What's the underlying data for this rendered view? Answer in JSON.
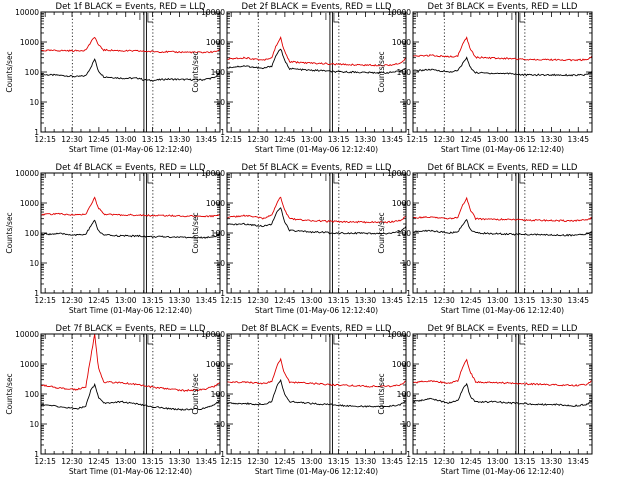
{
  "figure": {
    "xlabel": "Start Time (01-May-06 12:12:40)",
    "ylabel": "Counts/sec",
    "x_tick_labels": [
      "12:15",
      "12:30",
      "12:45",
      "13:00",
      "13:15",
      "13:30",
      "13:45"
    ],
    "y_tick_labels": [
      "1",
      "10",
      "100",
      "1000",
      "10000"
    ]
  },
  "colors": {
    "events": "#000000",
    "lld": "#e00000"
  },
  "chart_data": [
    {
      "type": "line",
      "title": "Det 1f BLACK = Events, RED = LLD",
      "x_unit": "minutes after 12:12:40",
      "xlim": [
        0,
        100
      ],
      "ylim": [
        1,
        10000
      ],
      "yscale": "log",
      "events_markers_min": [
        17.5,
        57.5,
        62.5
      ],
      "series": [
        {
          "name": "Events",
          "color": "#000000",
          "x": [
            0,
            10,
            20,
            25,
            28,
            30,
            32,
            35,
            45,
            55,
            57,
            62,
            70,
            80,
            90,
            97,
            100
          ],
          "values": [
            82,
            78,
            70,
            75,
            150,
            270,
            110,
            70,
            62,
            62,
            55,
            52,
            58,
            56,
            55,
            65,
            95
          ]
        },
        {
          "name": "LLD",
          "color": "#e00000",
          "x": [
            0,
            10,
            20,
            25,
            28,
            30,
            32,
            35,
            45,
            55,
            57,
            62,
            70,
            80,
            90,
            97,
            100
          ],
          "values": [
            520,
            520,
            510,
            540,
            1000,
            1500,
            800,
            540,
            510,
            500,
            490,
            480,
            470,
            460,
            450,
            470,
            560
          ]
        }
      ]
    },
    {
      "type": "line",
      "title": "Det 2f BLACK = Events, RED = LLD",
      "x_unit": "minutes after 12:12:40",
      "xlim": [
        0,
        100
      ],
      "ylim": [
        1,
        10000
      ],
      "yscale": "log",
      "events_markers_min": [
        17.5,
        57.5,
        62.5
      ],
      "series": [
        {
          "name": "Events",
          "color": "#000000",
          "x": [
            0,
            10,
            20,
            25,
            28,
            30,
            32,
            35,
            45,
            55,
            57,
            62,
            70,
            80,
            90,
            97,
            100
          ],
          "values": [
            140,
            160,
            130,
            160,
            420,
            600,
            250,
            130,
            115,
            110,
            105,
            100,
            100,
            95,
            95,
            105,
            140
          ]
        },
        {
          "name": "LLD",
          "color": "#e00000",
          "x": [
            0,
            10,
            20,
            25,
            28,
            30,
            32,
            35,
            45,
            55,
            57,
            62,
            70,
            80,
            90,
            97,
            100
          ],
          "values": [
            270,
            300,
            250,
            300,
            900,
            1350,
            500,
            220,
            200,
            190,
            185,
            180,
            175,
            170,
            170,
            190,
            290
          ]
        }
      ]
    },
    {
      "type": "line",
      "title": "Det 3f BLACK = Events, RED = LLD",
      "x_unit": "minutes after 12:12:40",
      "xlim": [
        0,
        100
      ],
      "ylim": [
        1,
        10000
      ],
      "yscale": "log",
      "events_markers_min": [
        17.5,
        57.5,
        62.5
      ],
      "series": [
        {
          "name": "Events",
          "color": "#000000",
          "x": [
            0,
            10,
            20,
            25,
            28,
            30,
            32,
            35,
            45,
            55,
            57,
            62,
            70,
            80,
            90,
            97,
            100
          ],
          "values": [
            110,
            120,
            100,
            110,
            200,
            300,
            140,
            95,
            90,
            90,
            85,
            80,
            80,
            80,
            78,
            80,
            105
          ]
        },
        {
          "name": "LLD",
          "color": "#e00000",
          "x": [
            0,
            10,
            20,
            25,
            28,
            30,
            32,
            35,
            45,
            55,
            57,
            62,
            70,
            80,
            90,
            97,
            100
          ],
          "values": [
            330,
            360,
            320,
            340,
            900,
            1400,
            600,
            310,
            290,
            280,
            275,
            265,
            260,
            255,
            250,
            260,
            330
          ]
        }
      ]
    },
    {
      "type": "line",
      "title": "Det 4f BLACK = Events, RED = LLD",
      "x_unit": "minutes after 12:12:40",
      "xlim": [
        0,
        100
      ],
      "ylim": [
        1,
        10000
      ],
      "yscale": "log",
      "events_markers_min": [
        17.5,
        57.5,
        62.5
      ],
      "series": [
        {
          "name": "Events",
          "color": "#000000",
          "x": [
            0,
            10,
            20,
            25,
            28,
            30,
            32,
            35,
            45,
            55,
            57,
            62,
            70,
            80,
            90,
            97,
            100
          ],
          "values": [
            90,
            95,
            85,
            90,
            180,
            260,
            120,
            85,
            80,
            80,
            78,
            75,
            75,
            72,
            70,
            75,
            95
          ]
        },
        {
          "name": "LLD",
          "color": "#e00000",
          "x": [
            0,
            10,
            20,
            25,
            28,
            30,
            32,
            35,
            45,
            55,
            57,
            62,
            70,
            80,
            90,
            97,
            100
          ],
          "values": [
            420,
            430,
            400,
            430,
            900,
            1500,
            700,
            420,
            400,
            400,
            390,
            380,
            380,
            370,
            360,
            370,
            430
          ]
        }
      ]
    },
    {
      "type": "line",
      "title": "Det 5f BLACK = Events, RED = LLD",
      "x_unit": "minutes after 12:12:40",
      "xlim": [
        0,
        100
      ],
      "ylim": [
        1,
        10000
      ],
      "yscale": "log",
      "events_markers_min": [
        17.5,
        57.5,
        62.5
      ],
      "series": [
        {
          "name": "Events",
          "color": "#000000",
          "x": [
            0,
            10,
            20,
            25,
            28,
            30,
            32,
            35,
            45,
            55,
            57,
            62,
            70,
            80,
            90,
            97,
            100
          ],
          "values": [
            190,
            200,
            170,
            200,
            500,
            700,
            250,
            120,
            110,
            105,
            100,
            100,
            100,
            95,
            95,
            110,
            160
          ]
        },
        {
          "name": "LLD",
          "color": "#e00000",
          "x": [
            0,
            10,
            20,
            25,
            28,
            30,
            32,
            35,
            45,
            55,
            57,
            62,
            70,
            80,
            90,
            97,
            100
          ],
          "values": [
            330,
            380,
            310,
            380,
            1000,
            1600,
            600,
            300,
            260,
            250,
            245,
            240,
            235,
            230,
            230,
            260,
            370
          ]
        }
      ]
    },
    {
      "type": "line",
      "title": "Det 6f BLACK = Events, RED = LLD",
      "x_unit": "minutes after 12:12:40",
      "xlim": [
        0,
        100
      ],
      "ylim": [
        1,
        10000
      ],
      "yscale": "log",
      "events_markers_min": [
        17.5,
        57.5,
        62.5
      ],
      "series": [
        {
          "name": "Events",
          "color": "#000000",
          "x": [
            0,
            10,
            20,
            25,
            28,
            30,
            32,
            35,
            45,
            55,
            57,
            62,
            70,
            80,
            90,
            97,
            100
          ],
          "values": [
            110,
            120,
            100,
            110,
            200,
            270,
            130,
            100,
            95,
            92,
            90,
            90,
            88,
            85,
            85,
            90,
            115
          ]
        },
        {
          "name": "LLD",
          "color": "#e00000",
          "x": [
            0,
            10,
            20,
            25,
            28,
            30,
            32,
            35,
            45,
            55,
            57,
            62,
            70,
            80,
            90,
            97,
            100
          ],
          "values": [
            320,
            340,
            300,
            330,
            900,
            1400,
            600,
            300,
            285,
            280,
            275,
            270,
            265,
            260,
            255,
            270,
            320
          ]
        }
      ]
    },
    {
      "type": "line",
      "title": "Det 7f BLACK = Events, RED = LLD",
      "x_unit": "minutes after 12:12:40",
      "xlim": [
        0,
        100
      ],
      "ylim": [
        1,
        10000
      ],
      "yscale": "log",
      "events_markers_min": [
        17.5,
        57.5,
        62.5
      ],
      "series": [
        {
          "name": "Events",
          "color": "#000000",
          "x": [
            0,
            10,
            20,
            25,
            28,
            30,
            32,
            35,
            45,
            55,
            57,
            62,
            70,
            80,
            90,
            97,
            100
          ],
          "values": [
            45,
            38,
            32,
            40,
            140,
            200,
            80,
            50,
            55,
            45,
            42,
            38,
            33,
            30,
            32,
            45,
            60
          ]
        },
        {
          "name": "LLD",
          "color": "#e00000",
          "x": [
            0,
            10,
            20,
            25,
            28,
            30,
            32,
            35,
            45,
            55,
            57,
            62,
            70,
            80,
            90,
            97,
            100
          ],
          "values": [
            200,
            160,
            140,
            170,
            2000,
            10000,
            800,
            250,
            240,
            200,
            190,
            170,
            150,
            130,
            140,
            180,
            240
          ]
        }
      ]
    },
    {
      "type": "line",
      "title": "Det 8f BLACK = Events, RED = LLD",
      "x_unit": "minutes after 12:12:40",
      "xlim": [
        0,
        100
      ],
      "ylim": [
        1,
        10000
      ],
      "yscale": "log",
      "events_markers_min": [
        17.5,
        57.5,
        62.5
      ],
      "series": [
        {
          "name": "Events",
          "color": "#000000",
          "x": [
            0,
            10,
            20,
            25,
            28,
            30,
            32,
            35,
            45,
            55,
            57,
            62,
            70,
            80,
            90,
            97,
            100
          ],
          "values": [
            50,
            48,
            45,
            55,
            200,
            300,
            100,
            55,
            50,
            45,
            45,
            42,
            40,
            38,
            38,
            45,
            60
          ]
        },
        {
          "name": "LLD",
          "color": "#e00000",
          "x": [
            0,
            10,
            20,
            25,
            28,
            30,
            32,
            35,
            45,
            55,
            57,
            62,
            70,
            80,
            90,
            97,
            100
          ],
          "values": [
            240,
            250,
            220,
            260,
            900,
            1400,
            500,
            250,
            230,
            210,
            205,
            200,
            190,
            180,
            180,
            200,
            270
          ]
        }
      ]
    },
    {
      "type": "line",
      "title": "Det 9f BLACK = Events, RED = LLD",
      "x_unit": "minutes after 12:12:40",
      "xlim": [
        0,
        100
      ],
      "ylim": [
        1,
        10000
      ],
      "yscale": "log",
      "events_markers_min": [
        17.5,
        57.5,
        62.5
      ],
      "series": [
        {
          "name": "Events",
          "color": "#000000",
          "x": [
            0,
            10,
            20,
            25,
            28,
            30,
            32,
            35,
            45,
            55,
            57,
            62,
            70,
            80,
            90,
            97,
            100
          ],
          "values": [
            55,
            70,
            50,
            60,
            150,
            220,
            80,
            55,
            55,
            50,
            50,
            48,
            45,
            45,
            40,
            45,
            60
          ]
        },
        {
          "name": "LLD",
          "color": "#e00000",
          "x": [
            0,
            10,
            20,
            25,
            28,
            30,
            32,
            35,
            45,
            55,
            57,
            62,
            70,
            80,
            90,
            97,
            100
          ],
          "values": [
            240,
            280,
            230,
            270,
            900,
            1400,
            550,
            250,
            240,
            230,
            225,
            220,
            210,
            200,
            190,
            210,
            270
          ]
        }
      ]
    }
  ]
}
